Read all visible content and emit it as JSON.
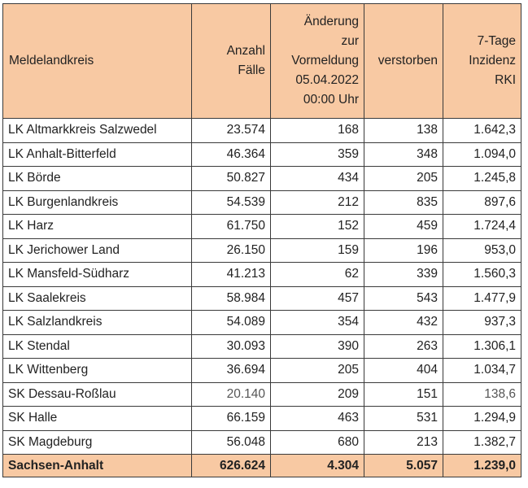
{
  "table": {
    "headers": [
      [
        "Meldelandkreis"
      ],
      [
        "Anzahl",
        "Fälle"
      ],
      [
        "Änderung",
        "zur",
        "Vormeldung",
        "05.04.2022",
        "00:00 Uhr"
      ],
      [
        "verstorben"
      ],
      [
        "7-Tage",
        "Inzidenz",
        "RKI"
      ]
    ],
    "rows": [
      [
        "LK Altmarkkreis Salzwedel",
        "23.574",
        "168",
        "138",
        "1.642,3"
      ],
      [
        "LK Anhalt-Bitterfeld",
        "46.364",
        "359",
        "348",
        "1.094,0"
      ],
      [
        "LK Börde",
        "50.827",
        "434",
        "205",
        "1.245,8"
      ],
      [
        "LK Burgenlandkreis",
        "54.539",
        "212",
        "835",
        "897,6"
      ],
      [
        "LK Harz",
        "61.750",
        "152",
        "459",
        "1.724,4"
      ],
      [
        "LK Jerichower Land",
        "26.150",
        "159",
        "196",
        "953,0"
      ],
      [
        "LK Mansfeld-Südharz",
        "41.213",
        "62",
        "339",
        "1.560,3"
      ],
      [
        "LK Saalekreis",
        "58.984",
        "457",
        "543",
        "1.477,9"
      ],
      [
        "LK Salzlandkreis",
        "54.089",
        "354",
        "432",
        "937,3"
      ],
      [
        "LK Stendal",
        "30.093",
        "390",
        "263",
        "1.306,1"
      ],
      [
        "LK Wittenberg",
        "36.694",
        "205",
        "404",
        "1.034,7"
      ],
      [
        "SK Dessau-Roßlau",
        "20.140",
        "209",
        "151",
        "138,6"
      ],
      [
        "SK Halle",
        "66.159",
        "463",
        "531",
        "1.294,9"
      ],
      [
        "SK Magdeburg",
        "56.048",
        "680",
        "213",
        "1.382,7"
      ]
    ],
    "total": [
      "Sachsen-Anhalt",
      "626.624",
      "4.304",
      "5.057",
      "1.239,0"
    ]
  }
}
